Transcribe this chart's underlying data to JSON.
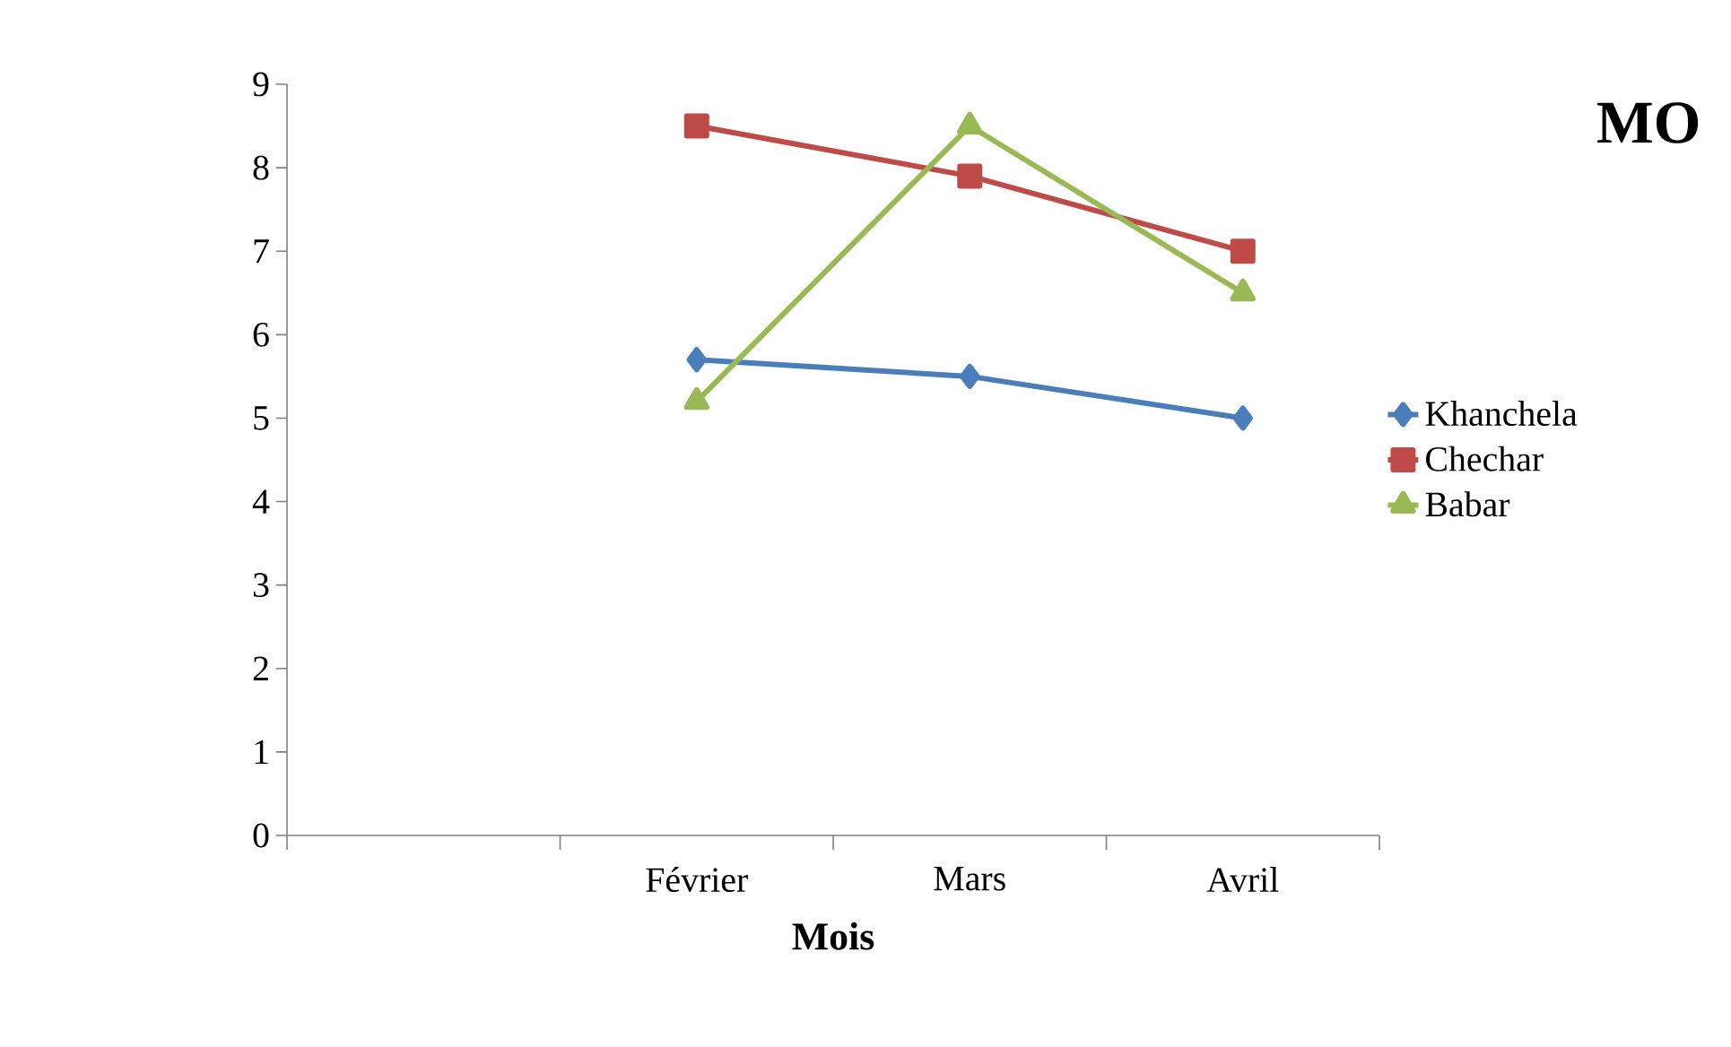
{
  "chart_data": {
    "type": "line",
    "title": "MO",
    "xlabel": "Mois",
    "categories": [
      null,
      "Février",
      "Mars",
      "Avril"
    ],
    "series": [
      {
        "name": "Khanchela",
        "color": "#4a7ebb",
        "marker": "diamond",
        "values": [
          null,
          5.7,
          5.5,
          5.0
        ]
      },
      {
        "name": "Chechar",
        "color": "#be4b48",
        "marker": "square",
        "values": [
          null,
          8.5,
          7.9,
          7.0
        ]
      },
      {
        "name": "Babar",
        "color": "#98b954",
        "marker": "triangle",
        "values": [
          null,
          5.2,
          8.5,
          6.5
        ]
      }
    ],
    "ylim": [
      0,
      9
    ],
    "yticks": [
      0,
      1,
      2,
      3,
      4,
      5,
      6,
      7,
      8,
      9
    ],
    "grid": false,
    "legend": "right",
    "line_style": "solid"
  }
}
